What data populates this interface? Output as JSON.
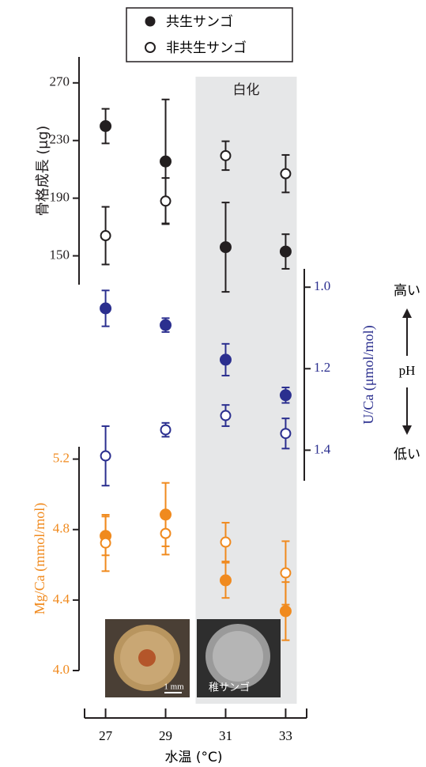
{
  "chart_data": {
    "type": "scatter",
    "x": [
      27,
      29,
      31,
      33
    ],
    "xlim": [
      26.3,
      33.7
    ],
    "xticks": [
      27,
      29,
      31,
      33
    ],
    "xlabel": "水温 (°C)",
    "legend": [
      "共生サンゴ",
      "非共生サンゴ"
    ],
    "bleaching": {
      "label": "白化",
      "xlim": [
        30,
        33.37
      ]
    },
    "ph_annotation": {
      "high": "高い",
      "label": "pH",
      "low": "低い"
    },
    "photo_labels": [
      "1 mm",
      "稚サンゴ"
    ],
    "panels": [
      {
        "ylabel": "骨格成長 (μg)",
        "side": "left",
        "inverted": false,
        "color": "#231f20",
        "ylim": [
          130,
          288
        ],
        "yticks": [
          150,
          190,
          230,
          270
        ],
        "series": [
          {
            "filled": true,
            "color": "#231f20",
            "values": [
              240,
              215.5,
              156,
              153
            ],
            "errors": [
              12,
              43,
              31,
              12
            ]
          },
          {
            "filled": false,
            "color": "#231f20",
            "values": [
              164,
              188,
              219.5,
              207
            ],
            "errors": [
              20,
              16,
              10,
              13
            ]
          }
        ]
      },
      {
        "ylabel": "U/Ca (μmol/mol)",
        "side": "right",
        "inverted": true,
        "color": "#2b2f8f",
        "ylim": [
          0.955,
          1.475
        ],
        "yticks": [
          {
            "value": 1,
            "label": "1.0"
          },
          1.2,
          1.4
        ],
        "series": [
          {
            "filled": true,
            "color": "#2b2f8f",
            "values": [
              1.052,
              1.093,
              1.178,
              1.265
            ],
            "errors": [
              0.044,
              0.017,
              0.039,
              0.019
            ]
          },
          {
            "filled": false,
            "color": "#2b2f8f",
            "values": [
              1.414,
              1.35,
              1.315,
              1.359
            ],
            "errors": [
              0.073,
              0.017,
              0.026,
              0.037
            ]
          }
        ]
      },
      {
        "ylabel": "Mg/Ca (mmol/mol)",
        "side": "left",
        "inverted": false,
        "color": "#f08a1e",
        "ylim": [
          4.0,
          5.27
        ],
        "yticks": [
          {
            "value": 4,
            "label": "4.0"
          },
          4.4,
          4.8,
          5.2
        ],
        "series": [
          {
            "filled": true,
            "color": "#f08a1e",
            "values": [
              4.764,
              4.885,
              4.512,
              4.337
            ],
            "errors": [
              0.11,
              0.18,
              0.1,
              0.165
            ]
          },
          {
            "filled": false,
            "color": "#f08a1e",
            "values": [
              4.724,
              4.778,
              4.729,
              4.554
            ],
            "errors": [
              0.16,
              0.12,
              0.11,
              0.18
            ]
          }
        ]
      }
    ]
  }
}
